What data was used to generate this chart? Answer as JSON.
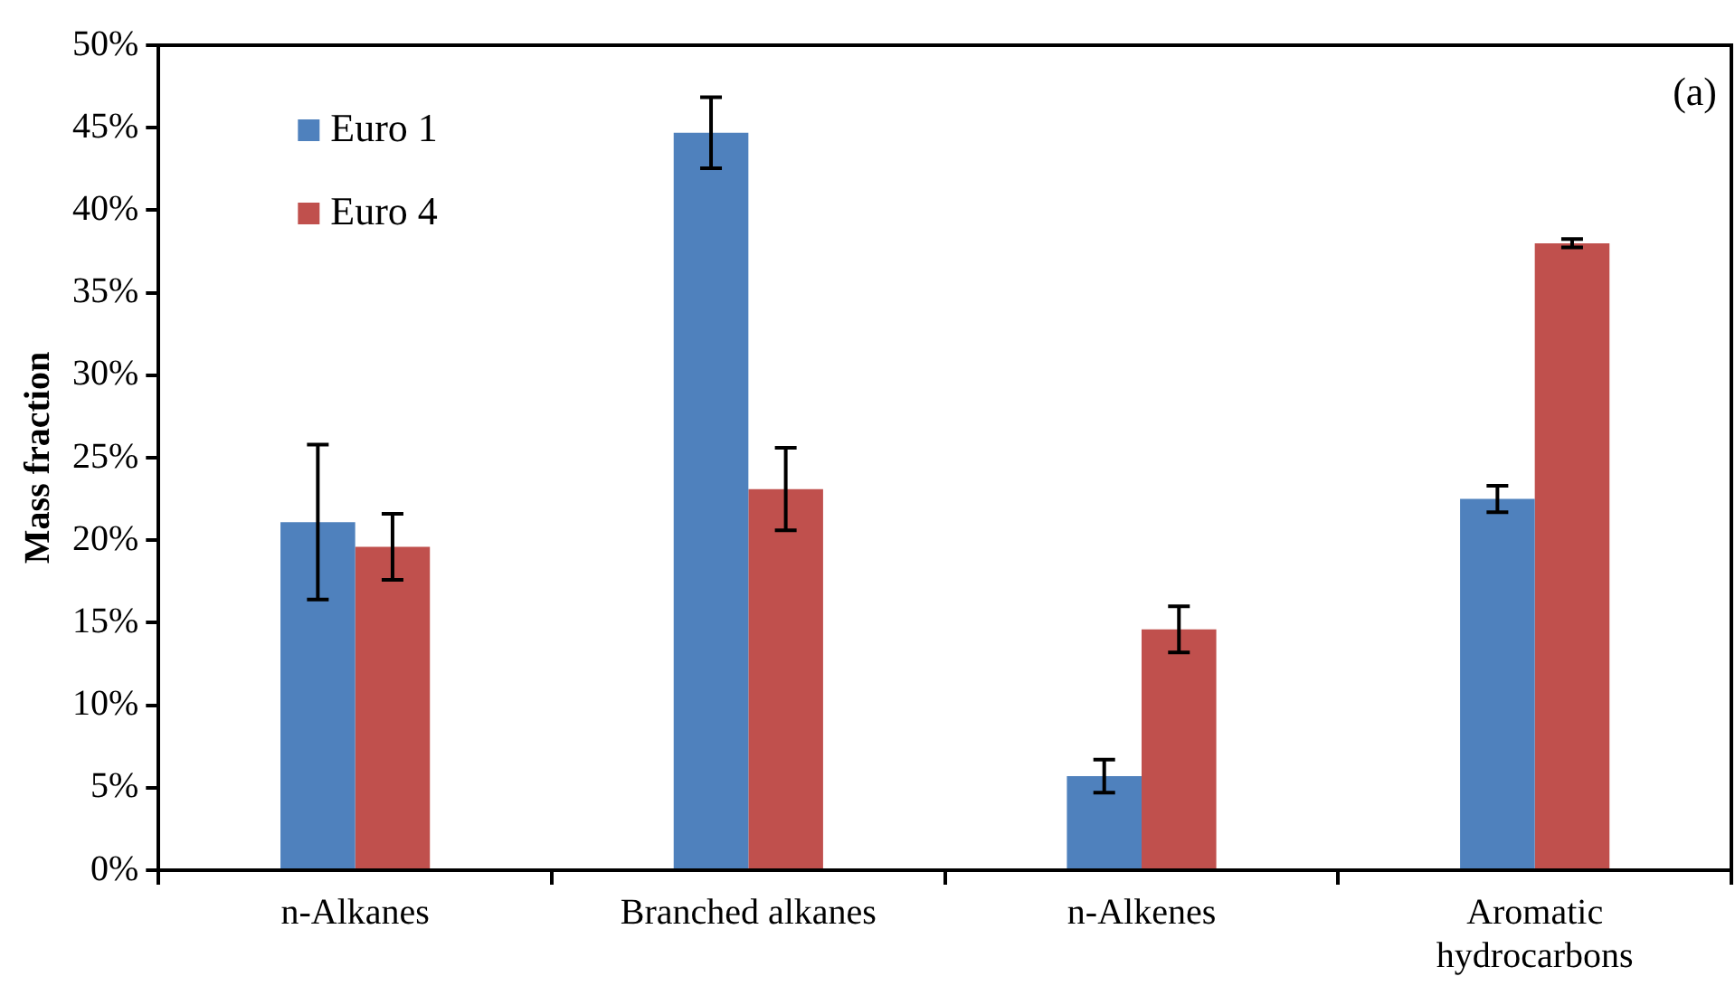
{
  "chart_data": {
    "type": "bar",
    "ylabel": "Mass fraction",
    "categories": [
      "n-Alkanes",
      "Branched alkanes",
      "n-Alkenes",
      "Aromatic hydrocarbons"
    ],
    "series": [
      {
        "name": "Euro 1",
        "color": "#4f81bd",
        "values": [
          21.1,
          44.7,
          5.7,
          22.5
        ],
        "errors": [
          4.7,
          2.15,
          1.0,
          0.8
        ]
      },
      {
        "name": "Euro 4",
        "color": "#c0504d",
        "values": [
          19.6,
          23.1,
          14.6,
          38.0
        ],
        "errors": [
          2.0,
          2.5,
          1.4,
          0.25
        ]
      }
    ],
    "ylim": [
      0,
      50
    ],
    "yticks": [
      {
        "value": 0,
        "label": "0%"
      },
      {
        "value": 5,
        "label": "5%"
      },
      {
        "value": 10,
        "label": "10%"
      },
      {
        "value": 15,
        "label": "15%"
      },
      {
        "value": 20,
        "label": "20%"
      },
      {
        "value": 25,
        "label": "25%"
      },
      {
        "value": 30,
        "label": "30%"
      },
      {
        "value": 35,
        "label": "35%"
      },
      {
        "value": 40,
        "label": "40%"
      },
      {
        "value": 45,
        "label": "45%"
      },
      {
        "value": 50,
        "label": "50%"
      }
    ],
    "grid": false,
    "legend": "top left",
    "annotations": [
      "(a)"
    ]
  }
}
